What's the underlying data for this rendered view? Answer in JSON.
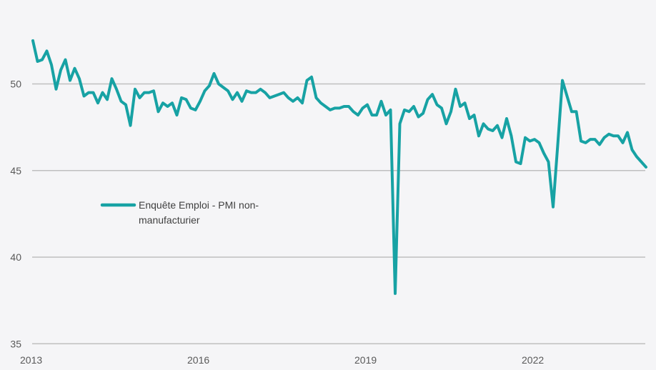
{
  "chart_data": {
    "type": "line",
    "title": "",
    "xlabel": "",
    "ylabel": "",
    "ylim": [
      35,
      53
    ],
    "yticks": [
      35,
      40,
      45,
      50
    ],
    "xtick_labels": [
      "2013",
      "2016",
      "2019",
      "2022"
    ],
    "xtick_month_index": [
      0,
      36,
      72,
      108
    ],
    "x_start": "2013-01",
    "x_frequency": "monthly",
    "grid": "horizontal",
    "legend_position": "middle-left",
    "colors": {
      "line": "#17a2a4",
      "grid": "#bfbfbf",
      "background": "#f5f5f7",
      "text": "#595959"
    },
    "series": [
      {
        "name": "Enquête Emploi - PMI non-manufacturier",
        "values": [
          52.5,
          51.3,
          51.4,
          51.9,
          51.1,
          49.7,
          50.8,
          51.4,
          50.2,
          50.9,
          50.3,
          49.3,
          49.5,
          49.5,
          48.9,
          49.5,
          49.1,
          50.3,
          49.7,
          49.0,
          48.8,
          47.6,
          49.7,
          49.2,
          49.5,
          49.5,
          49.6,
          48.4,
          48.9,
          48.7,
          48.9,
          48.2,
          49.2,
          49.1,
          48.6,
          48.5,
          49.0,
          49.6,
          49.9,
          50.6,
          50.0,
          49.8,
          49.6,
          49.1,
          49.5,
          49.0,
          49.6,
          49.5,
          49.5,
          49.7,
          49.5,
          49.2,
          49.3,
          49.4,
          49.5,
          49.2,
          49.0,
          49.2,
          48.9,
          50.2,
          50.4,
          49.2,
          48.9,
          48.7,
          48.5,
          48.6,
          48.6,
          48.7,
          48.7,
          48.4,
          48.2,
          48.6,
          48.8,
          48.2,
          48.2,
          49.0,
          48.2,
          48.5,
          37.9,
          47.7,
          48.5,
          48.4,
          48.7,
          48.1,
          48.3,
          49.1,
          49.4,
          48.8,
          48.6,
          47.7,
          48.4,
          49.7,
          48.7,
          48.9,
          48.0,
          48.2,
          47.0,
          47.7,
          47.4,
          47.3,
          47.6,
          46.9,
          48.0,
          47.0,
          45.5,
          45.4,
          46.9,
          46.7,
          46.8,
          46.6,
          46.0,
          45.5,
          42.9,
          46.5,
          50.2,
          49.3,
          48.4,
          48.4,
          46.7,
          46.6,
          46.8,
          46.8,
          46.5,
          46.9,
          47.1,
          47.0,
          47.0,
          46.6,
          47.2,
          46.2,
          45.8,
          45.5,
          45.2
        ]
      }
    ]
  },
  "legend": {
    "line1": "Enquête Emploi - PMI non-",
    "line2": "manufacturier"
  }
}
